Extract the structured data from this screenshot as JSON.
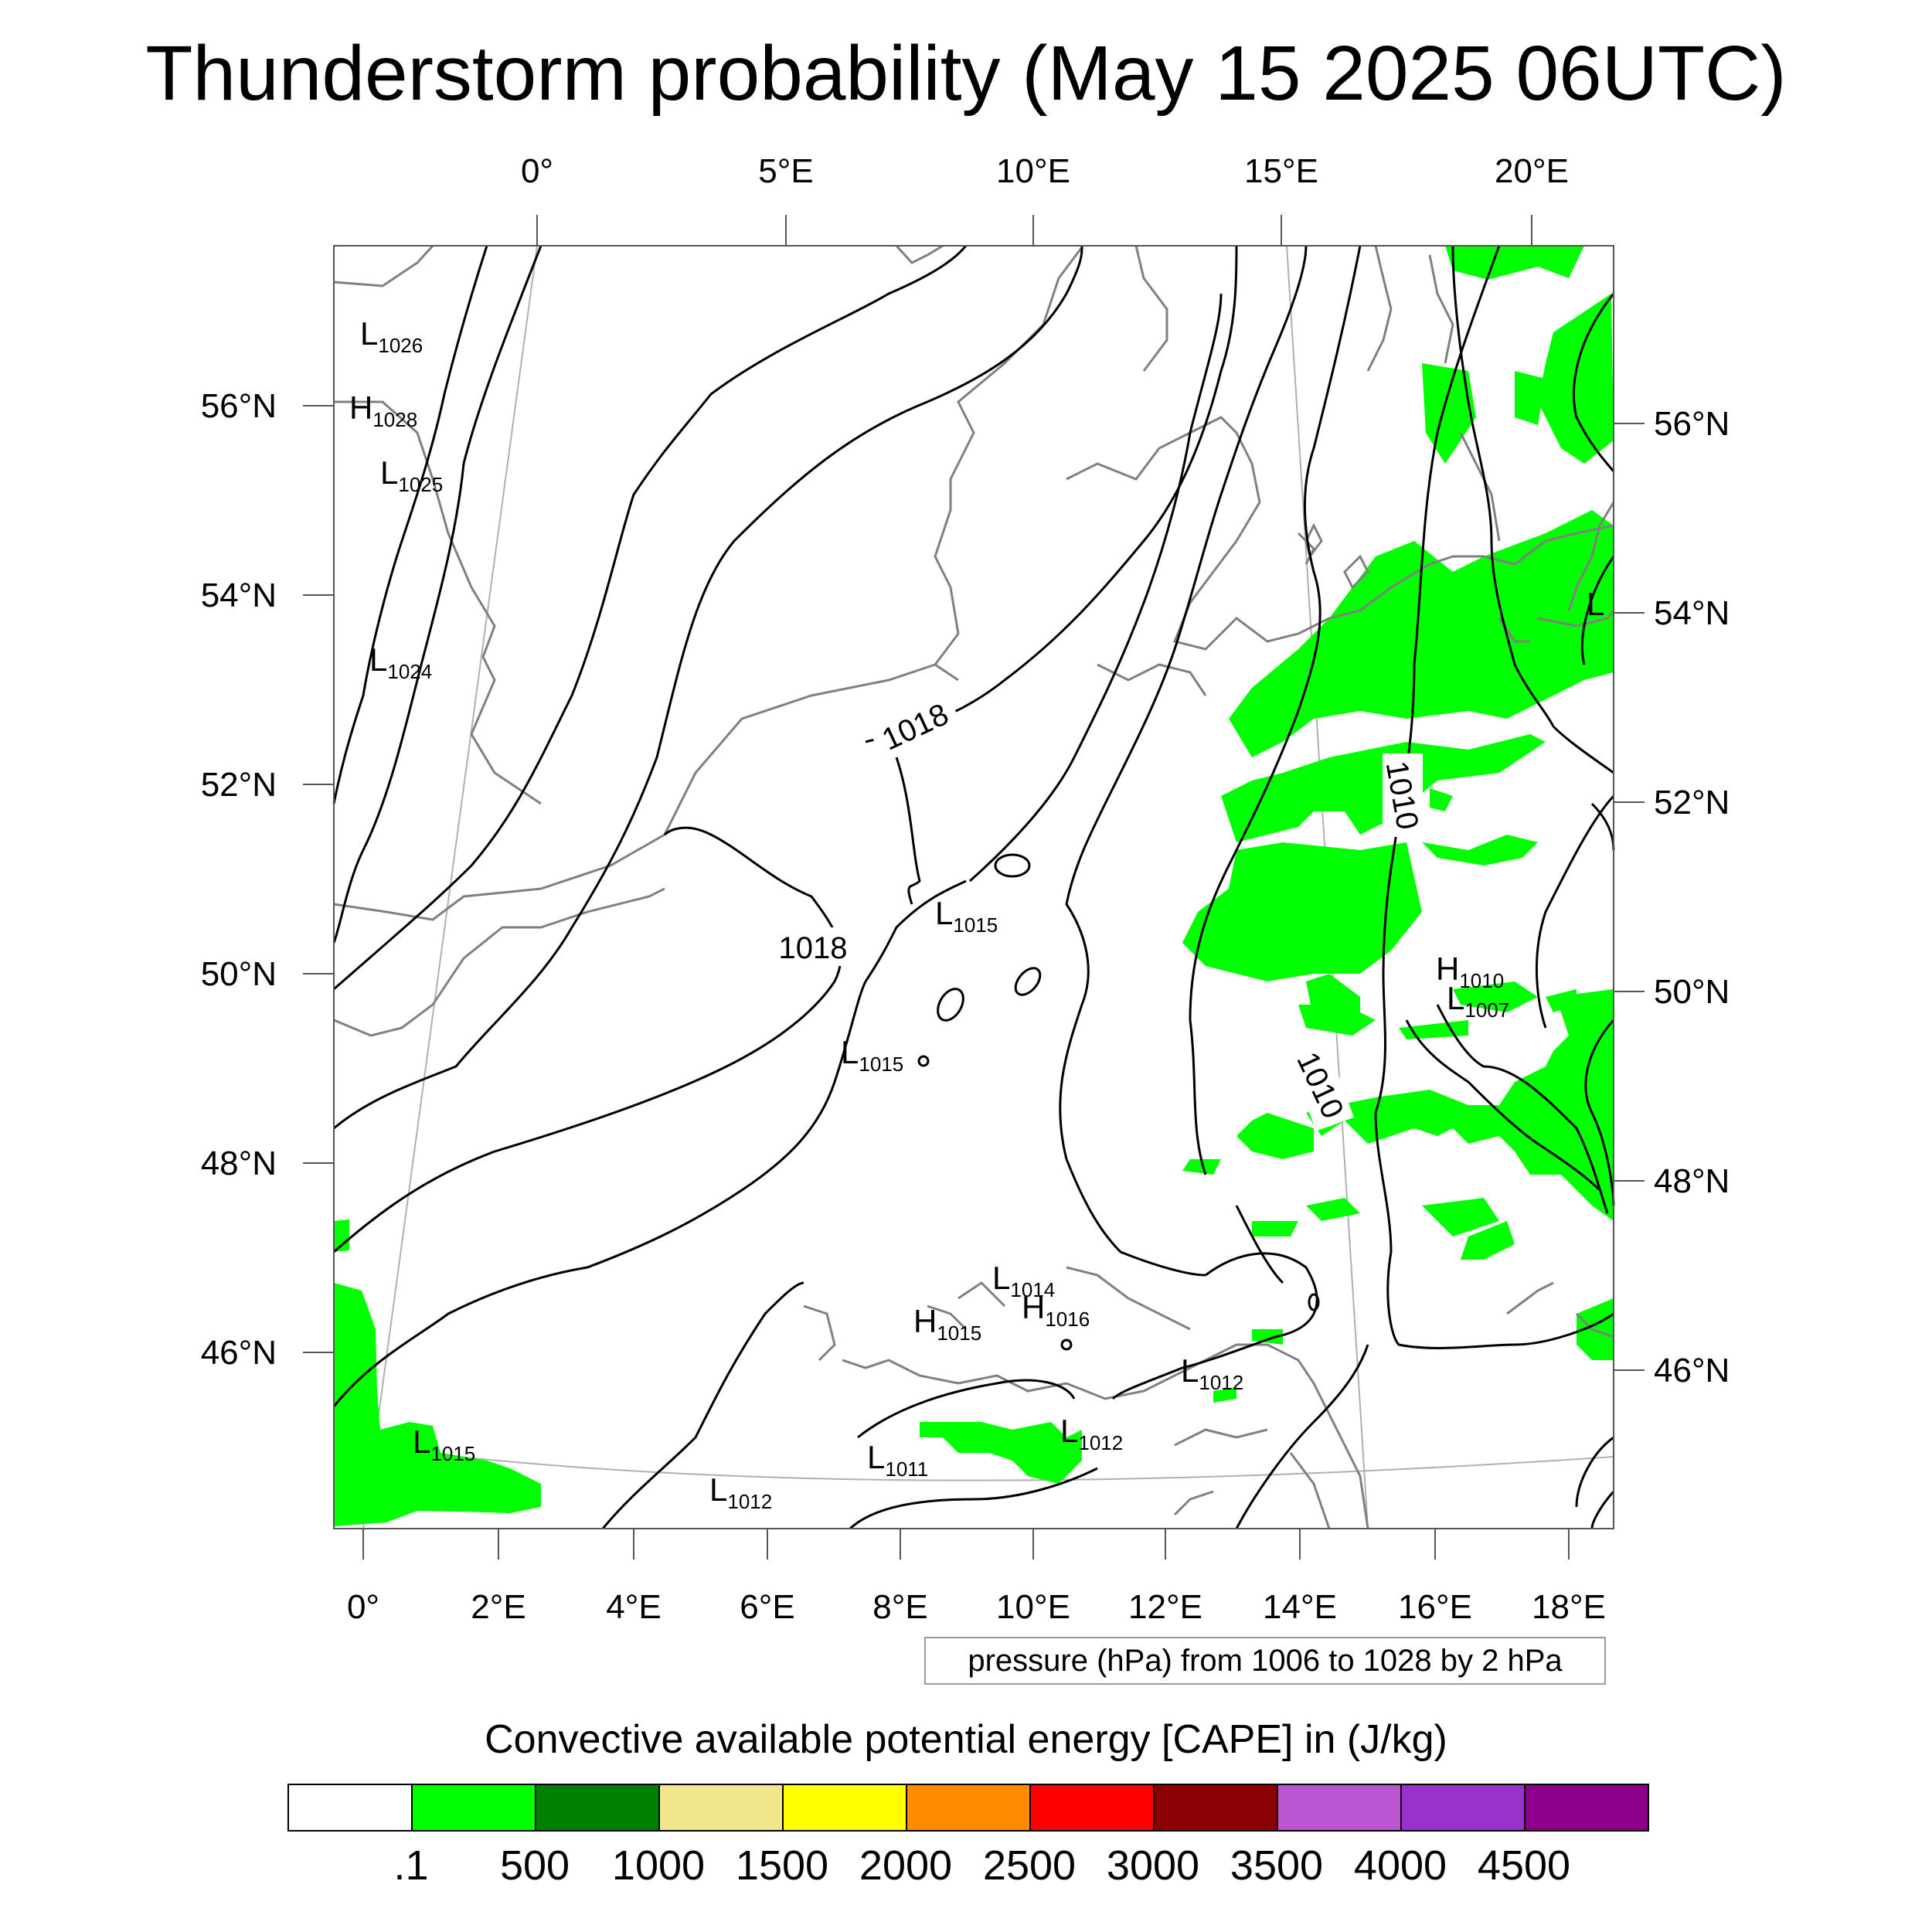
{
  "title": "Thunderstorm probability (May 15 2025 06UTC)",
  "map": {
    "top_lon_labels": [
      "0°",
      "5°E",
      "10°E",
      "15°E",
      "20°E"
    ],
    "bottom_lon_labels": [
      "0°",
      "2°E",
      "4°E",
      "6°E",
      "8°E",
      "10°E",
      "12°E",
      "14°E",
      "16°E",
      "18°E"
    ],
    "left_lat_labels": [
      "56°N",
      "54°N",
      "52°N",
      "50°N",
      "48°N",
      "46°N"
    ],
    "right_lat_labels": [
      "56°N",
      "54°N",
      "52°N",
      "50°N",
      "48°N",
      "46°N"
    ],
    "contour_labels": [
      "1018",
      "1018",
      "1010",
      "1010"
    ],
    "pressure_centers": [
      {
        "type": "L",
        "value": "1026"
      },
      {
        "type": "H",
        "value": "1028"
      },
      {
        "type": "L",
        "value": "1025"
      },
      {
        "type": "L",
        "value": "1024"
      },
      {
        "type": "L",
        "value": "1015"
      },
      {
        "type": "L",
        "value": "1015"
      },
      {
        "type": "L",
        "value": "1014"
      },
      {
        "type": "H",
        "value": "1015"
      },
      {
        "type": "H",
        "value": "1016"
      },
      {
        "type": "L",
        "value": "1015"
      },
      {
        "type": "L",
        "value": "1011"
      },
      {
        "type": "L",
        "value": "1012"
      },
      {
        "type": "L",
        "value": "1012"
      },
      {
        "type": "L",
        "value": "1012"
      },
      {
        "type": "H",
        "value": "1010"
      },
      {
        "type": "L",
        "value": "1007"
      },
      {
        "type": "L",
        "value": ""
      }
    ],
    "colors": {
      "coast": "#808080",
      "isobar": "#000000",
      "cape_fill": "#00ff00",
      "graticule": "#b0b0b0"
    }
  },
  "info_box": "pressure (hPa) from 1006 to 1028 by 2 hPa",
  "legend": {
    "title": "Convective available potential energy [CAPE] in (J/kg)",
    "colors": [
      "#ffffff",
      "#00ff00",
      "#008000",
      "#f0e68c",
      "#ffff00",
      "#ff8c00",
      "#ff0000",
      "#8b0000",
      "#ba55d3",
      "#9932cc",
      "#8b008b"
    ],
    "labels": [
      ".1",
      "500",
      "1000",
      "1500",
      "2000",
      "2500",
      "3000",
      "3500",
      "4000",
      "4500"
    ]
  }
}
